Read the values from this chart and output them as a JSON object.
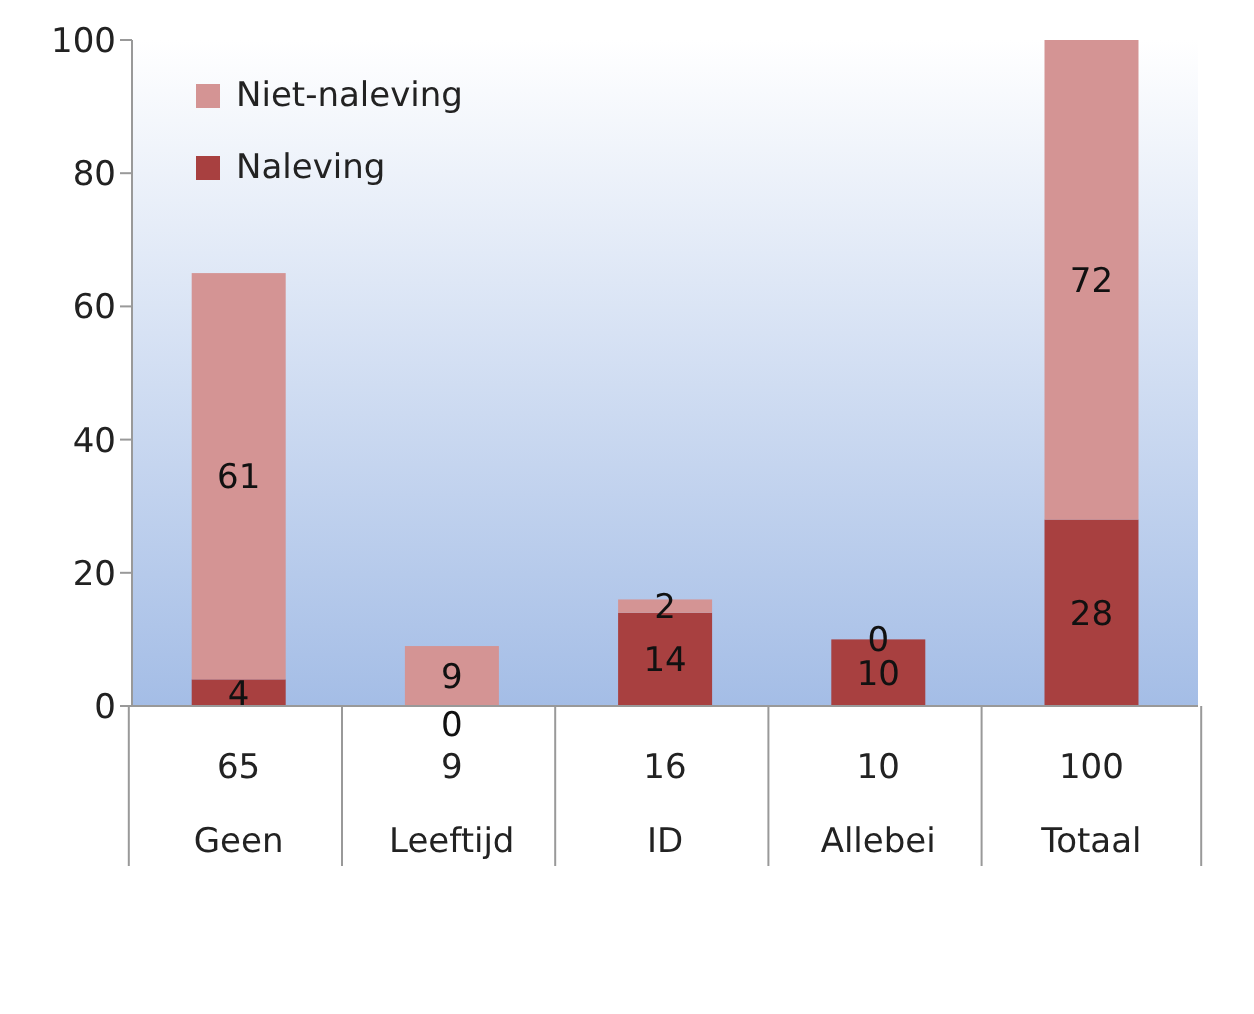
{
  "chart_data": {
    "type": "bar",
    "stacked": true,
    "categories": [
      "Geen",
      "Leeftijd",
      "ID",
      "Allebei",
      "Totaal"
    ],
    "series": [
      {
        "name": "Naleving",
        "color": "#a84040",
        "values": [
          4,
          0,
          14,
          10,
          28
        ]
      },
      {
        "name": "Niet-naleving",
        "color": "#d49494",
        "values": [
          61,
          9,
          2,
          0,
          72
        ]
      }
    ],
    "totals": [
      "65",
      "9",
      "16",
      "10",
      "100"
    ],
    "ylim": [
      0,
      100
    ],
    "yticks": [
      0,
      20,
      40,
      60,
      80,
      100
    ],
    "data_labels": true,
    "legend": "top left",
    "grid": false
  }
}
